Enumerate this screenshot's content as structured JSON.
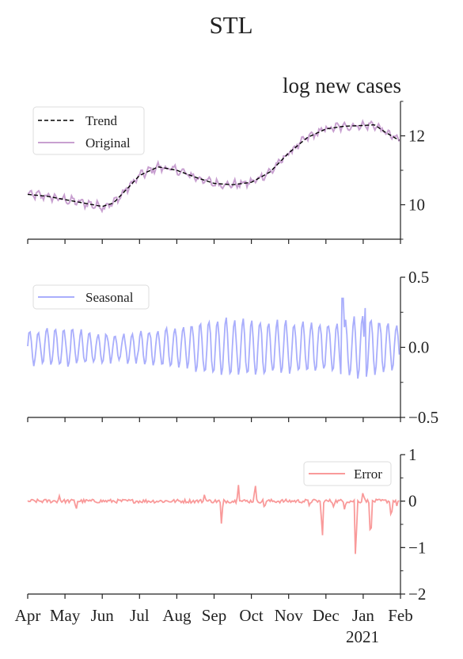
{
  "figure": {
    "title": "STL"
  },
  "x_axis": {
    "tick_labels": [
      "Apr",
      "May",
      "Jun",
      "Jul",
      "Aug",
      "Sep",
      "Oct",
      "Nov",
      "Dec",
      "Jan",
      "Feb"
    ],
    "year_label": "2021"
  },
  "colors": {
    "trend": "#000000",
    "original": "#c8a0d0",
    "seasonal": "#a9aefc",
    "error": "#f99a9a"
  },
  "chart_data": [
    {
      "type": "line",
      "title": "log new cases",
      "ylim": [
        9,
        13
      ],
      "y_ticks": [
        10,
        12
      ],
      "x_unit": "months since Apr 2020",
      "legend": {
        "placement": "top-left",
        "entries": [
          "Trend",
          "Original"
        ]
      },
      "series": [
        {
          "name": "Trend",
          "style": "dashed",
          "x": [
            0,
            0.5,
            1,
            1.5,
            2,
            2.3,
            2.7,
            3,
            3.5,
            4,
            4.5,
            5,
            5.5,
            6,
            6.5,
            7,
            7.5,
            8,
            8.5,
            9,
            9.3,
            9.6,
            10
          ],
          "values": [
            10.3,
            10.25,
            10.15,
            10.05,
            9.95,
            10.05,
            10.5,
            10.85,
            11.1,
            11.0,
            10.8,
            10.62,
            10.58,
            10.65,
            10.95,
            11.5,
            11.95,
            12.2,
            12.28,
            12.3,
            12.32,
            12.1,
            11.85
          ]
        },
        {
          "name": "Original",
          "x": [
            0,
            0.5,
            1,
            1.5,
            2,
            2.3,
            2.7,
            3,
            3.5,
            4,
            4.5,
            5,
            5.5,
            6,
            6.5,
            7,
            7.5,
            8,
            8.5,
            9,
            9.3,
            9.6,
            10
          ],
          "values": [
            10.3,
            10.25,
            10.15,
            10.05,
            9.95,
            10.05,
            10.5,
            10.85,
            11.1,
            11.0,
            10.8,
            10.62,
            10.58,
            10.65,
            10.95,
            11.5,
            11.95,
            12.2,
            12.28,
            12.3,
            12.32,
            12.1,
            11.85
          ],
          "noise": 0.17
        }
      ]
    },
    {
      "type": "line",
      "ylim": [
        -0.5,
        0.5
      ],
      "y_ticks": [
        0.5,
        0.0,
        -0.5
      ],
      "y_tick_labels": [
        "0.5",
        "0.0",
        "−0.5"
      ],
      "legend": {
        "placement": "top-left",
        "entries": [
          "Seasonal"
        ]
      },
      "series": [
        {
          "name": "Seasonal",
          "period_days": 7,
          "amplitude_x": [
            0,
            1,
            2,
            3,
            4,
            5,
            6,
            7,
            8,
            9,
            10
          ],
          "amplitude": [
            0.12,
            0.14,
            0.1,
            0.1,
            0.14,
            0.2,
            0.2,
            0.18,
            0.17,
            0.22,
            0.16
          ],
          "spikes": [
            {
              "x": 8.45,
              "value": 0.35
            },
            {
              "x": 9.05,
              "value": 0.28
            }
          ]
        }
      ]
    },
    {
      "type": "line",
      "ylim": [
        -2,
        1
      ],
      "y_ticks": [
        1,
        0,
        -1,
        -2
      ],
      "y_tick_labels": [
        "1",
        "0",
        "−1",
        "−2"
      ],
      "legend": {
        "placement": "top-right",
        "entries": [
          "Error"
        ]
      },
      "series": [
        {
          "name": "Error",
          "baseline": 0,
          "noise": 0.04,
          "spikes": [
            {
              "x": 0.85,
              "value": 0.12
            },
            {
              "x": 1.3,
              "value": -0.18
            },
            {
              "x": 4.75,
              "value": 0.18
            },
            {
              "x": 5.2,
              "value": -0.55
            },
            {
              "x": 5.65,
              "value": 0.42
            },
            {
              "x": 6.1,
              "value": 0.42
            },
            {
              "x": 6.35,
              "value": -0.15
            },
            {
              "x": 7.55,
              "value": -0.08
            },
            {
              "x": 7.9,
              "value": -0.95
            },
            {
              "x": 8.2,
              "value": -0.1
            },
            {
              "x": 8.5,
              "value": -0.15
            },
            {
              "x": 8.8,
              "value": -1.45
            },
            {
              "x": 9.0,
              "value": 0.25
            },
            {
              "x": 9.2,
              "value": -1.0
            },
            {
              "x": 9.75,
              "value": -0.4
            },
            {
              "x": 9.9,
              "value": -0.08
            }
          ]
        }
      ]
    }
  ]
}
